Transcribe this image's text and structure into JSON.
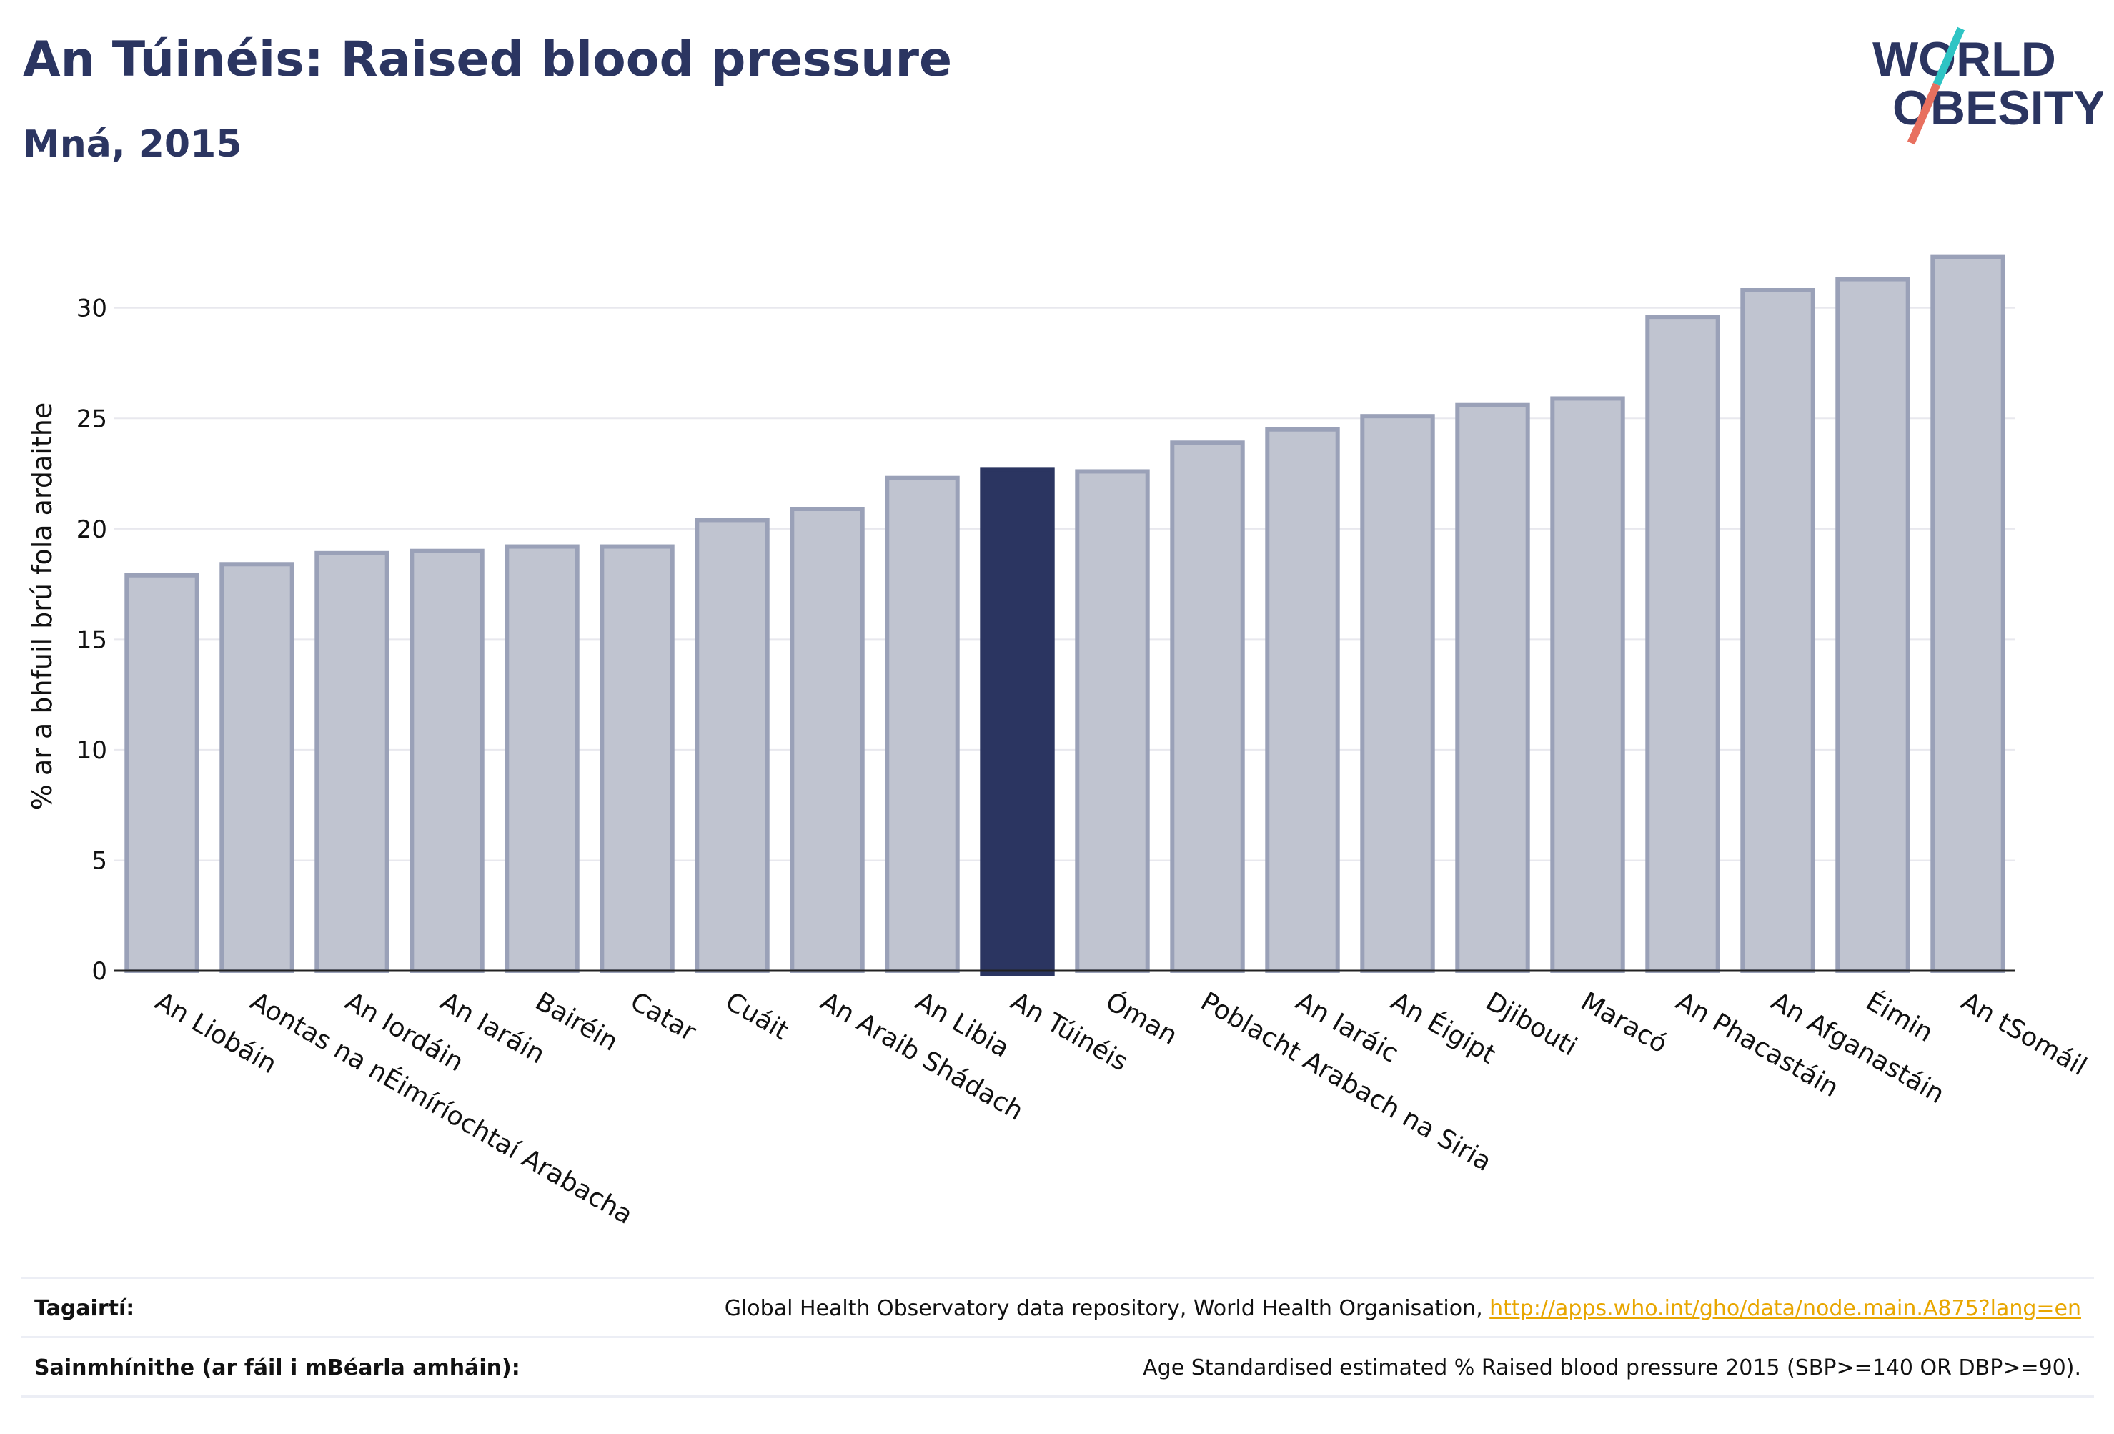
{
  "header": {
    "title": "An Túinéis: Raised blood pressure",
    "subtitle": "Mná, 2015"
  },
  "logo": {
    "text_line1": "WORLD",
    "text_line2": "OBESITY",
    "colors": {
      "text": "#2b3561",
      "slash_teal": "#2ec4c4",
      "slash_red": "#e8705f"
    }
  },
  "colors": {
    "bar_default": "#c0c4d0",
    "bar_border": "#9aa1b8",
    "bar_highlight": "#2b3561",
    "grid": "#e8e8ee",
    "axis": "#222222"
  },
  "chart_data": {
    "type": "bar",
    "title": "An Túinéis: Raised blood pressure",
    "subtitle": "Mná, 2015",
    "xlabel": "",
    "ylabel": "% ar a bhfuil brú fola ardaithe",
    "ylim": [
      0,
      33
    ],
    "yticks": [
      0,
      5,
      10,
      15,
      20,
      25,
      30
    ],
    "grid": true,
    "highlight": "An Túinéis",
    "categories": [
      "An Liobáin",
      "Aontas na nÉimíríochtaí Arabacha",
      "An Iordáin",
      "An Iaráin",
      "Bairéin",
      "Catar",
      "Cuáit",
      "An Araib Shádach",
      "An Libia",
      "An Túinéis",
      "Óman",
      "Poblacht Arabach na Siria",
      "An Iaráic",
      "An Éigipt",
      "Djibouti",
      "Maracó",
      "An Phacastáin",
      "An Afganastáin",
      "Éimin",
      "An tSomáil"
    ],
    "values": [
      17.9,
      18.4,
      18.9,
      19.0,
      19.2,
      19.2,
      20.4,
      20.9,
      22.3,
      22.7,
      22.6,
      23.9,
      24.5,
      25.1,
      25.6,
      25.9,
      29.6,
      30.8,
      31.3,
      32.3
    ]
  },
  "footer": {
    "references_label": "Tagairtí:",
    "references_text": "Global Health Observatory data repository, World Health Organisation, ",
    "references_link": "http://apps.who.int/gho/data/node.main.A875?lang=en",
    "definitions_label": "Sainmhínithe (ar fáil i mBéarla amháin):",
    "definitions_text": "Age Standardised estimated % Raised blood pressure 2015 (SBP>=140 OR DBP>=90)."
  }
}
